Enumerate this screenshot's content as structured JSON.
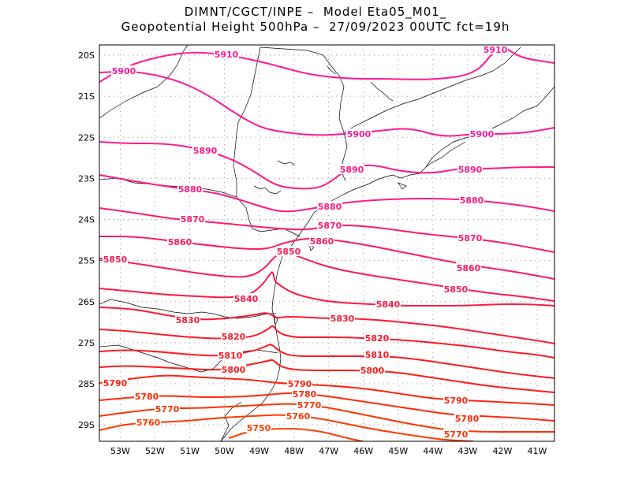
{
  "header": {
    "line1": "DIMNT/CGCT/INPE –  Model Eta05_M01_",
    "line2": "Geopotential Height 500hPa –  27/09/2023 00UTC fct=19h"
  },
  "map": {
    "lon_range": [
      -53.6,
      -40.5
    ],
    "lat_range": [
      -29.4,
      -19.75
    ],
    "lat_ticks": [
      "20S",
      "21S",
      "22S",
      "23S",
      "24S",
      "25S",
      "26S",
      "27S",
      "28S",
      "29S"
    ],
    "lon_ticks": [
      "53W",
      "52W",
      "51W",
      "50W",
      "49W",
      "48W",
      "47W",
      "46W",
      "45W",
      "44W",
      "43W",
      "42W",
      "41W"
    ],
    "grid": "dotted",
    "colors": {
      "high": "#ff1493",
      "mid": "#ff1a33",
      "low": "#ff3300",
      "coast": "#000000"
    }
  },
  "contours": [
    {
      "level": 5910,
      "label": "5910",
      "color": "#ff1a9a"
    },
    {
      "level": 5900,
      "label": "5900",
      "color": "#ff1a9a"
    },
    {
      "level": 5890,
      "label": "5890",
      "color": "#ff1a8a"
    },
    {
      "level": 5880,
      "label": "5880",
      "color": "#ff1a80"
    },
    {
      "level": 5870,
      "label": "5870",
      "color": "#ff1a70"
    },
    {
      "level": 5860,
      "label": "5860",
      "color": "#ff1a60"
    },
    {
      "level": 5850,
      "label": "5850",
      "color": "#ff1a55"
    },
    {
      "level": 5840,
      "label": "5840",
      "color": "#ff1a45"
    },
    {
      "level": 5830,
      "label": "5830",
      "color": "#ff1a35"
    },
    {
      "level": 5820,
      "label": "5820",
      "color": "#ff1a28"
    },
    {
      "level": 5810,
      "label": "5810",
      "color": "#ff1a20"
    },
    {
      "level": 5800,
      "label": "5800",
      "color": "#ff1a18"
    },
    {
      "level": 5790,
      "label": "5790",
      "color": "#ff2210"
    },
    {
      "level": 5780,
      "label": "5780",
      "color": "#ff2a08"
    },
    {
      "level": 5770,
      "label": "5770",
      "color": "#ff3300"
    },
    {
      "level": 5760,
      "label": "5760",
      "color": "#ff3a00"
    },
    {
      "level": 5750,
      "label": "5750",
      "color": "#ff4000"
    }
  ]
}
